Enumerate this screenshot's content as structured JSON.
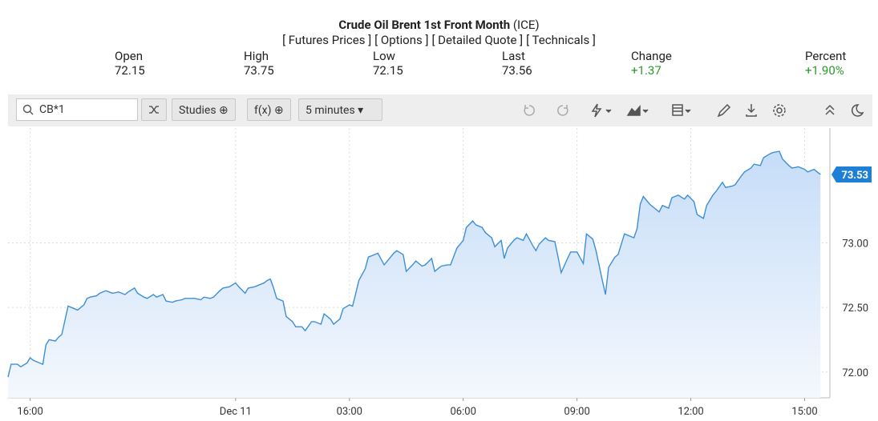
{
  "header": {
    "title": "Crude Oil Brent 1st Front Month",
    "exchange": "(ICE)",
    "links": [
      "[ Futures Prices ]",
      "[ Options ]",
      "[ Detailed Quote ]",
      "[ Technicals ]"
    ]
  },
  "quote": [
    {
      "label": "Open",
      "value": "72.15"
    },
    {
      "label": "High",
      "value": "73.75"
    },
    {
      "label": "Low",
      "value": "72.15"
    },
    {
      "label": "Last",
      "value": "73.56"
    },
    {
      "label": "Change",
      "value": "+1.37"
    },
    {
      "label": "Percent",
      "value": "+1.90%"
    }
  ],
  "toolbar": {
    "symbol": "CB*1",
    "buttons": [
      "Studies",
      "f(x)",
      "5 minutes"
    ]
  },
  "chart_data": {
    "type": "line",
    "color": "#3d8fd6",
    "grid": true,
    "xlim": [
      0,
      260
    ],
    "ylim": [
      71.8,
      73.89
    ],
    "xticks": [
      {
        "value": 7,
        "label": "16:00"
      },
      {
        "value": 72,
        "label": "Dec 11"
      },
      {
        "value": 108,
        "label": "03:00"
      },
      {
        "value": 144,
        "label": "06:00"
      },
      {
        "value": 180,
        "label": "09:00"
      },
      {
        "value": 216,
        "label": "12:00"
      },
      {
        "value": 252,
        "label": "15:00"
      }
    ],
    "yticks": [
      {
        "value": 72,
        "label": "72.00"
      },
      {
        "value": 72.5,
        "label": "72.50"
      },
      {
        "value": 73,
        "label": "73.00"
      }
    ],
    "last_value": 73.53,
    "x": [
      0,
      1,
      3,
      4,
      6,
      7,
      8,
      10,
      11,
      12,
      13,
      15,
      16,
      17,
      18,
      19,
      21,
      22,
      24,
      25,
      26,
      28,
      29,
      31,
      32,
      33,
      35,
      37,
      38,
      40,
      41,
      43,
      44,
      46,
      47,
      49,
      50,
      52,
      53,
      55,
      56,
      58,
      59,
      61,
      62,
      64,
      65,
      67,
      68,
      70,
      72,
      73,
      75,
      76,
      78,
      79,
      81,
      82,
      83,
      84,
      85,
      87,
      88,
      90,
      91,
      93,
      94,
      96,
      97,
      99,
      100,
      102,
      103,
      105,
      106,
      108,
      109,
      110,
      111,
      113,
      114,
      116,
      117,
      119,
      120,
      122,
      123,
      125,
      126,
      128,
      129,
      131,
      132,
      134,
      135,
      136,
      137,
      139,
      140,
      142,
      144,
      145,
      147,
      148,
      150,
      151,
      153,
      154,
      156,
      157,
      158,
      160,
      161,
      163,
      164,
      166,
      167,
      168,
      170,
      171,
      173,
      174,
      175,
      177,
      178,
      180,
      182,
      183,
      185,
      186,
      188,
      189,
      190,
      192,
      193,
      195,
      196,
      198,
      199,
      200,
      201,
      203,
      204,
      206,
      207,
      209,
      210,
      212,
      214,
      215,
      217,
      218,
      220,
      221,
      223,
      224,
      226,
      227,
      229,
      230,
      232,
      233,
      235,
      236,
      238,
      239,
      241,
      242,
      244,
      245,
      247,
      248,
      250,
      252,
      253,
      255,
      256,
      257
    ],
    "values": [
      71.96,
      72.06,
      72.06,
      72.04,
      72.07,
      72.11,
      72.09,
      72.07,
      72.06,
      72.21,
      72.25,
      72.24,
      72.27,
      72.29,
      72.4,
      72.51,
      72.49,
      72.48,
      72.52,
      72.57,
      72.58,
      72.59,
      72.61,
      72.63,
      72.62,
      72.61,
      72.62,
      72.6,
      72.62,
      72.65,
      72.61,
      72.58,
      72.57,
      72.6,
      72.58,
      72.6,
      72.55,
      72.54,
      72.55,
      72.56,
      72.57,
      72.57,
      72.57,
      72.56,
      72.58,
      72.57,
      72.58,
      72.63,
      72.65,
      72.66,
      72.69,
      72.66,
      72.61,
      72.65,
      72.66,
      72.67,
      72.69,
      72.71,
      72.72,
      72.65,
      72.57,
      72.55,
      72.43,
      72.39,
      72.35,
      72.35,
      72.32,
      72.39,
      72.39,
      72.37,
      72.45,
      72.41,
      72.37,
      72.41,
      72.49,
      72.52,
      72.51,
      72.61,
      72.71,
      72.8,
      72.89,
      72.91,
      72.92,
      72.83,
      72.86,
      72.92,
      72.94,
      72.91,
      72.78,
      72.83,
      72.86,
      72.82,
      72.83,
      72.88,
      72.78,
      72.8,
      72.82,
      72.83,
      72.83,
      72.96,
      73.02,
      73.12,
      73.17,
      73.14,
      73.12,
      73.08,
      73.04,
      72.97,
      73.02,
      72.88,
      72.96,
      73.02,
      73.04,
      73.02,
      73.07,
      72.98,
      72.94,
      72.99,
      73.04,
      73.02,
      73.01,
      72.89,
      72.77,
      72.88,
      72.93,
      72.93,
      72.84,
      73.07,
      73.03,
      72.94,
      72.71,
      72.6,
      72.81,
      72.89,
      72.91,
      73.07,
      73.06,
      73.04,
      73.11,
      73.3,
      73.36,
      73.3,
      73.28,
      73.24,
      73.29,
      73.27,
      73.35,
      73.37,
      73.34,
      73.37,
      73.32,
      73.22,
      73.19,
      73.29,
      73.37,
      73.4,
      73.47,
      73.43,
      73.44,
      73.45,
      73.52,
      73.55,
      73.58,
      73.61,
      73.6,
      73.66,
      73.69,
      73.7,
      73.71,
      73.65,
      73.6,
      73.58,
      73.59,
      73.57,
      73.55,
      73.57,
      73.55,
      73.53
    ]
  }
}
